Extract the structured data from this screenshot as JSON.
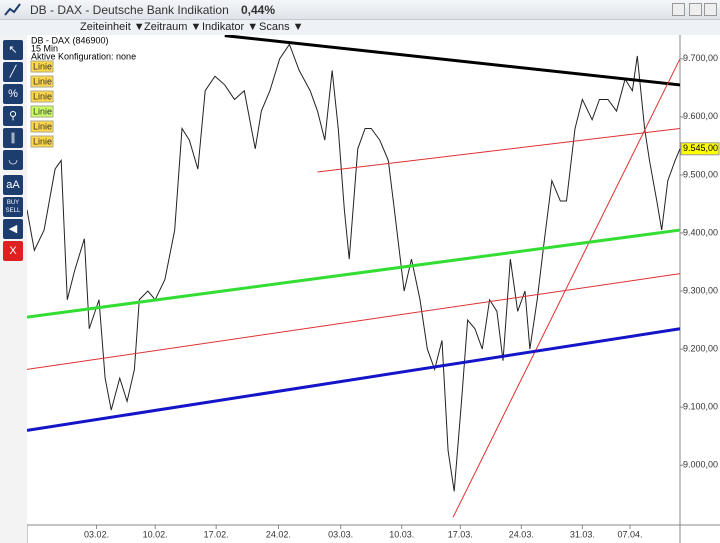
{
  "header": {
    "title": "DB - DAX - Deutsche Bank Indikation",
    "change": "0,44%",
    "menus": [
      "Zeiteinheit ▼",
      "Zeitraum ▼",
      "Indikator ▼",
      "Scans ▼"
    ]
  },
  "toolbar": {
    "percent": "%",
    "text": "aA",
    "buy": "BUY",
    "sell": "SELL",
    "close": "X"
  },
  "chart_data": {
    "type": "line",
    "instrument": "DB - DAX (846900)",
    "interval": "15 Min",
    "config": "Aktive Konfiguration: none",
    "color": "#222222",
    "x": [
      -5.7,
      -5.1,
      -4.3,
      -3.4,
      -2.9,
      -2.4,
      -1.8,
      -1.0,
      -0.6,
      0.2,
      0.7,
      1.2,
      1.9,
      2.5,
      3.1,
      3.5,
      4.2,
      4.8,
      5.6,
      6.4,
      7.0,
      7.6,
      8.3,
      8.9,
      9.7,
      10.5,
      11.3,
      12.1,
      13.0,
      13.5,
      14.2,
      15.0,
      15.8,
      16.6,
      17.5,
      18.1,
      18.7,
      19.3,
      19.8,
      20.3,
      20.7,
      21.4,
      22.0,
      22.5,
      23.2,
      23.9,
      24.4,
      24.8,
      25.2,
      25.8,
      26.5,
      27.1,
      27.7,
      28.3,
      28.8,
      29.3,
      29.9,
      30.4,
      31.0,
      31.6,
      32.2,
      32.8,
      33.3,
      33.9,
      34.5,
      35.1,
      35.5,
      36.1,
      36.7,
      37.3,
      38.0,
      38.5,
      39.2,
      39.8,
      40.6,
      41.2,
      41.9,
      42.6,
      43.3,
      43.9,
      44.3,
      44.9,
      45.3,
      45.9,
      46.3,
      46.8,
      47.4,
      47.8
    ],
    "values": [
      9440,
      9370,
      9405,
      9510,
      9525,
      9285,
      9335,
      9390,
      9235,
      9285,
      9150,
      9095,
      9150,
      9110,
      9165,
      9285,
      9300,
      9285,
      9320,
      9405,
      9580,
      9560,
      9510,
      9645,
      9670,
      9655,
      9630,
      9645,
      9545,
      9610,
      9645,
      9700,
      9725,
      9680,
      9645,
      9610,
      9560,
      9680,
      9580,
      9440,
      9355,
      9545,
      9580,
      9580,
      9560,
      9525,
      9440,
      9370,
      9300,
      9355,
      9285,
      9200,
      9165,
      9215,
      9025,
      8955,
      9110,
      9250,
      9235,
      9200,
      9285,
      9265,
      9180,
      9355,
      9265,
      9300,
      9200,
      9285,
      9390,
      9490,
      9455,
      9455,
      9580,
      9630,
      9595,
      9630,
      9630,
      9610,
      9665,
      9645,
      9705,
      9580,
      9525,
      9455,
      9405,
      9490,
      9525,
      9545
    ],
    "last_value": {
      "value": 9545,
      "label": "9.545,00"
    },
    "trendlines": [
      {
        "label": "Linie",
        "color": "#000000",
        "x": [
          10.5,
          47.8
        ],
        "values": [
          9740,
          9655
        ]
      },
      {
        "label": "Linie",
        "color": "#e03030",
        "x": [
          18.1,
          47.8
        ],
        "values": [
          9505,
          9580
        ]
      },
      {
        "label": "Linie",
        "color": "#e03030",
        "x": [
          29.2,
          47.8
        ],
        "values": [
          8910,
          9700
        ]
      },
      {
        "label": "Linie",
        "color": "#33dd33",
        "x": [
          -5.7,
          47.8
        ],
        "values": [
          9255,
          9405
        ]
      },
      {
        "label": "Linie",
        "color": "#e03030",
        "x": [
          -5.7,
          47.8
        ],
        "values": [
          9165,
          9330
        ]
      },
      {
        "label": "Linie",
        "color": "#1414c8",
        "x": [
          -5.7,
          47.8
        ],
        "values": [
          9060,
          9235
        ]
      }
    ],
    "xlim": [
      -5.7,
      47.8
    ],
    "ylim": [
      8897,
      9741
    ],
    "xticks": [
      {
        "value": 0,
        "label": "03.02."
      },
      {
        "value": 4.8,
        "label": "10.02."
      },
      {
        "value": 9.8,
        "label": "17.02."
      },
      {
        "value": 14.9,
        "label": "24.02."
      },
      {
        "value": 20,
        "label": "03.03."
      },
      {
        "value": 25,
        "label": "10.03."
      },
      {
        "value": 29.8,
        "label": "17.03."
      },
      {
        "value": 34.8,
        "label": "24.03."
      },
      {
        "value": 39.8,
        "label": "31.03."
      },
      {
        "value": 43.7,
        "label": "07.04."
      }
    ],
    "yticks": [
      {
        "value": 9000,
        "label": "9.000,00"
      },
      {
        "value": 9100,
        "label": "9.100,00"
      },
      {
        "value": 9200,
        "label": "9.200,00"
      },
      {
        "value": 9300,
        "label": "9.300,00"
      },
      {
        "value": 9400,
        "label": "9.400,00"
      },
      {
        "value": 9500,
        "label": "9.500,00"
      },
      {
        "value": 9600,
        "label": "9.600,00"
      },
      {
        "value": 9700,
        "label": "9.700,00"
      }
    ],
    "grid": false
  }
}
